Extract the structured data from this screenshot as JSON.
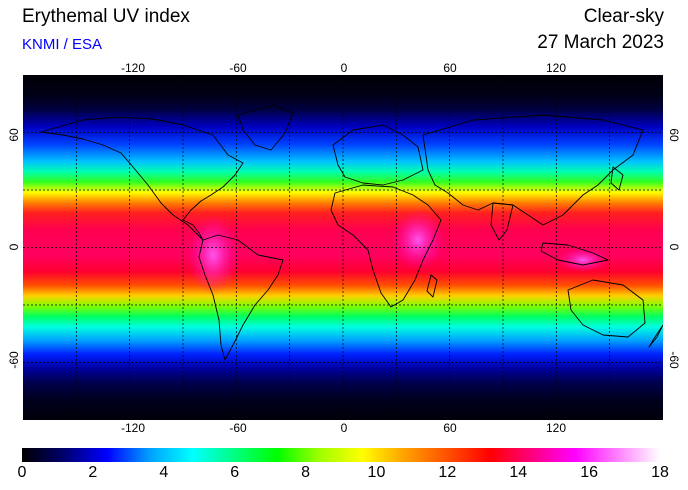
{
  "header": {
    "title": "Erythemal UV index",
    "agency": "KNMI / ESA",
    "condition": "Clear-sky",
    "date": "27 March 2023"
  },
  "map": {
    "lon_ticks": [
      "-120",
      "-60",
      "0",
      "60",
      "120"
    ],
    "lat_ticks": [
      "60",
      "0",
      "-60"
    ],
    "projection": "equirectangular",
    "grid": true,
    "coastlines": true
  },
  "colorbar": {
    "min": 0,
    "max": 18,
    "tick_labels": [
      "0",
      "2",
      "4",
      "6",
      "8",
      "10",
      "12",
      "14",
      "16",
      "18"
    ],
    "stops": [
      "#000000",
      "#000070",
      "#0000ff",
      "#00a0ff",
      "#00ffff",
      "#00ff80",
      "#00ff00",
      "#a0ff00",
      "#ffff00",
      "#ffa000",
      "#ff5000",
      "#ff0000",
      "#ff0080",
      "#ff00ff",
      "#ff80ff",
      "#ffffff"
    ]
  },
  "colors": {
    "agency_text": "#0000ff",
    "grid": "#000000",
    "coastline": "#000000"
  }
}
